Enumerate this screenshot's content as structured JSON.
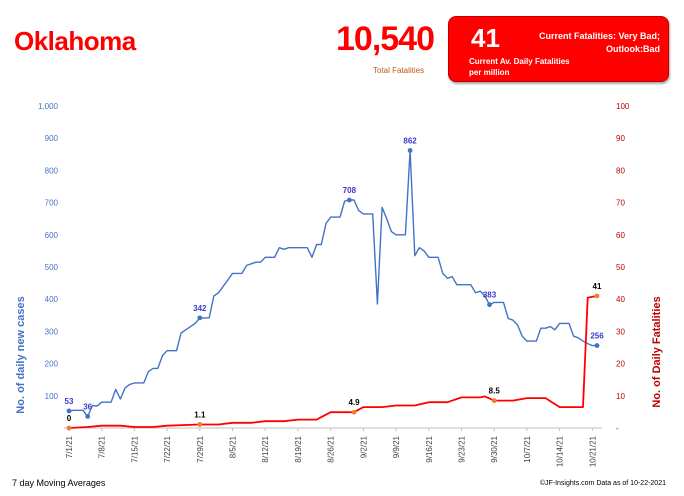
{
  "header": {
    "state": "Oklahoma",
    "total_fatalities": "10,540",
    "total_fatalities_label": "Total Fatalities",
    "current_rate": "41",
    "current_rate_label": "Current Av. Daily Fatalities per million",
    "status_text": "Current Fatalities: Very Bad; Outlook:Bad"
  },
  "footer": {
    "left": "7 day Moving Averages",
    "right": "©JF-Insights.com  Data as of 10-22-2021"
  },
  "colors": {
    "cases": "#4472c4",
    "fatalities": "#ff0000",
    "fatality_marker": "#ed7d31",
    "accent": "#ff0000",
    "left_axis_text": "#4472c4",
    "right_axis_text": "#c00000"
  },
  "chart_data": {
    "type": "line",
    "title": "",
    "xlabel": "",
    "ylabel_left": "No. of daily new  cases",
    "ylabel_right": "No. of Daily Fatalities",
    "ylim_left": [
      0,
      1000
    ],
    "ylim_right": [
      0,
      100
    ],
    "yticks_left": [
      "",
      "100",
      "200",
      "300",
      "400",
      "500",
      "600",
      "700",
      "800",
      "900",
      "1,000"
    ],
    "yticks_right": [
      "-",
      "10",
      "20",
      "30",
      "40",
      "50",
      "60",
      "70",
      "80",
      "90",
      "100"
    ],
    "x_start": "2021-07-01",
    "x_end": "2021-10-22",
    "x_tick_labels": [
      "7/1/21",
      "7/8/21",
      "7/15/21",
      "7/22/21",
      "7/29/21",
      "8/5/21",
      "8/12/21",
      "8/19/21",
      "8/26/21",
      "9/2/21",
      "9/9/21",
      "9/16/21",
      "9/23/21",
      "9/30/21",
      "10/7/21",
      "10/14/21",
      "10/21/21"
    ],
    "grid": false,
    "series": [
      {
        "name": "No. of daily new  cases",
        "axis": "left",
        "points": [
          [
            "2021-07-01",
            53
          ],
          [
            "2021-07-02",
            55
          ],
          [
            "2021-07-03",
            55
          ],
          [
            "2021-07-04",
            55
          ],
          [
            "2021-07-05",
            36
          ],
          [
            "2021-07-06",
            70
          ],
          [
            "2021-07-07",
            68
          ],
          [
            "2021-07-08",
            80
          ],
          [
            "2021-07-09",
            80
          ],
          [
            "2021-07-10",
            80
          ],
          [
            "2021-07-11",
            120
          ],
          [
            "2021-07-12",
            90
          ],
          [
            "2021-07-13",
            125
          ],
          [
            "2021-07-14",
            135
          ],
          [
            "2021-07-15",
            140
          ],
          [
            "2021-07-16",
            140
          ],
          [
            "2021-07-17",
            140
          ],
          [
            "2021-07-18",
            175
          ],
          [
            "2021-07-19",
            185
          ],
          [
            "2021-07-20",
            185
          ],
          [
            "2021-07-21",
            225
          ],
          [
            "2021-07-22",
            240
          ],
          [
            "2021-07-23",
            240
          ],
          [
            "2021-07-24",
            240
          ],
          [
            "2021-07-25",
            295
          ],
          [
            "2021-07-26",
            305
          ],
          [
            "2021-07-27",
            315
          ],
          [
            "2021-07-28",
            325
          ],
          [
            "2021-07-29",
            342
          ],
          [
            "2021-07-30",
            342
          ],
          [
            "2021-07-31",
            342
          ],
          [
            "2021-08-01",
            410
          ],
          [
            "2021-08-02",
            420
          ],
          [
            "2021-08-03",
            440
          ],
          [
            "2021-08-04",
            460
          ],
          [
            "2021-08-05",
            480
          ],
          [
            "2021-08-06",
            480
          ],
          [
            "2021-08-07",
            480
          ],
          [
            "2021-08-08",
            505
          ],
          [
            "2021-08-09",
            510
          ],
          [
            "2021-08-10",
            515
          ],
          [
            "2021-08-11",
            515
          ],
          [
            "2021-08-12",
            530
          ],
          [
            "2021-08-13",
            530
          ],
          [
            "2021-08-14",
            530
          ],
          [
            "2021-08-15",
            560
          ],
          [
            "2021-08-16",
            555
          ],
          [
            "2021-08-17",
            560
          ],
          [
            "2021-08-18",
            560
          ],
          [
            "2021-08-19",
            560
          ],
          [
            "2021-08-20",
            560
          ],
          [
            "2021-08-21",
            560
          ],
          [
            "2021-08-22",
            530
          ],
          [
            "2021-08-23",
            570
          ],
          [
            "2021-08-24",
            570
          ],
          [
            "2021-08-25",
            635
          ],
          [
            "2021-08-26",
            655
          ],
          [
            "2021-08-27",
            655
          ],
          [
            "2021-08-28",
            655
          ],
          [
            "2021-08-29",
            705
          ],
          [
            "2021-08-30",
            708
          ],
          [
            "2021-08-31",
            708
          ],
          [
            "2021-09-01",
            675
          ],
          [
            "2021-09-02",
            665
          ],
          [
            "2021-09-03",
            665
          ],
          [
            "2021-09-04",
            665
          ],
          [
            "2021-09-05",
            385
          ],
          [
            "2021-09-06",
            685
          ],
          [
            "2021-09-07",
            650
          ],
          [
            "2021-09-08",
            610
          ],
          [
            "2021-09-09",
            600
          ],
          [
            "2021-09-10",
            600
          ],
          [
            "2021-09-11",
            600
          ],
          [
            "2021-09-12",
            862
          ],
          [
            "2021-09-13",
            535
          ],
          [
            "2021-09-14",
            560
          ],
          [
            "2021-09-15",
            550
          ],
          [
            "2021-09-16",
            530
          ],
          [
            "2021-09-17",
            530
          ],
          [
            "2021-09-18",
            530
          ],
          [
            "2021-09-19",
            480
          ],
          [
            "2021-09-20",
            465
          ],
          [
            "2021-09-21",
            470
          ],
          [
            "2021-09-22",
            445
          ],
          [
            "2021-09-23",
            445
          ],
          [
            "2021-09-24",
            445
          ],
          [
            "2021-09-25",
            445
          ],
          [
            "2021-09-26",
            420
          ],
          [
            "2021-09-27",
            425
          ],
          [
            "2021-09-28",
            410
          ],
          [
            "2021-09-29",
            383
          ],
          [
            "2021-09-30",
            390
          ],
          [
            "2021-10-01",
            390
          ],
          [
            "2021-10-02",
            390
          ],
          [
            "2021-10-03",
            340
          ],
          [
            "2021-10-04",
            335
          ],
          [
            "2021-10-05",
            320
          ],
          [
            "2021-10-06",
            285
          ],
          [
            "2021-10-07",
            270
          ],
          [
            "2021-10-08",
            270
          ],
          [
            "2021-10-09",
            270
          ],
          [
            "2021-10-10",
            310
          ],
          [
            "2021-10-11",
            310
          ],
          [
            "2021-10-12",
            315
          ],
          [
            "2021-10-13",
            305
          ],
          [
            "2021-10-14",
            325
          ],
          [
            "2021-10-15",
            325
          ],
          [
            "2021-10-16",
            325
          ],
          [
            "2021-10-17",
            285
          ],
          [
            "2021-10-18",
            280
          ],
          [
            "2021-10-19",
            270
          ],
          [
            "2021-10-20",
            262
          ],
          [
            "2021-10-21",
            256
          ],
          [
            "2021-10-22",
            256
          ]
        ],
        "labels": [
          {
            "date": "2021-07-01",
            "value": 53,
            "text": "53"
          },
          {
            "date": "2021-07-05",
            "value": 36,
            "text": "36"
          },
          {
            "date": "2021-07-29",
            "value": 342,
            "text": "342"
          },
          {
            "date": "2021-08-30",
            "value": 708,
            "text": "708"
          },
          {
            "date": "2021-09-12",
            "value": 862,
            "text": "862"
          },
          {
            "date": "2021-09-29",
            "value": 383,
            "text": "383"
          },
          {
            "date": "2021-10-22",
            "value": 256,
            "text": "256"
          }
        ]
      },
      {
        "name": "No. of Daily Fatalities",
        "axis": "right",
        "points": [
          [
            "2021-07-01",
            0
          ],
          [
            "2021-07-05",
            0.3
          ],
          [
            "2021-07-08",
            0.7
          ],
          [
            "2021-07-12",
            0.7
          ],
          [
            "2021-07-15",
            0.3
          ],
          [
            "2021-07-19",
            0.3
          ],
          [
            "2021-07-22",
            0.7
          ],
          [
            "2021-07-29",
            1.1
          ],
          [
            "2021-08-02",
            1.1
          ],
          [
            "2021-08-05",
            1.6
          ],
          [
            "2021-08-09",
            1.6
          ],
          [
            "2021-08-12",
            2.1
          ],
          [
            "2021-08-16",
            2.1
          ],
          [
            "2021-08-19",
            2.6
          ],
          [
            "2021-08-23",
            2.6
          ],
          [
            "2021-08-26",
            4.9
          ],
          [
            "2021-08-30",
            4.9
          ],
          [
            "2021-08-31",
            4.9
          ],
          [
            "2021-09-02",
            6.5
          ],
          [
            "2021-09-06",
            6.5
          ],
          [
            "2021-09-09",
            7.0
          ],
          [
            "2021-09-13",
            7.0
          ],
          [
            "2021-09-16",
            8.0
          ],
          [
            "2021-09-20",
            8.0
          ],
          [
            "2021-09-23",
            9.5
          ],
          [
            "2021-09-27",
            9.5
          ],
          [
            "2021-09-28",
            9.8
          ],
          [
            "2021-09-30",
            8.5
          ],
          [
            "2021-10-04",
            8.5
          ],
          [
            "2021-10-07",
            9.3
          ],
          [
            "2021-10-11",
            9.3
          ],
          [
            "2021-10-14",
            6.5
          ],
          [
            "2021-10-18",
            6.5
          ],
          [
            "2021-10-19",
            6.5
          ],
          [
            "2021-10-20",
            40.5
          ],
          [
            "2021-10-22",
            41
          ]
        ],
        "labels": [
          {
            "date": "2021-07-01",
            "value": 0,
            "text": "0"
          },
          {
            "date": "2021-07-29",
            "value": 1.1,
            "text": "1.1"
          },
          {
            "date": "2021-08-31",
            "value": 4.9,
            "text": "4.9"
          },
          {
            "date": "2021-09-30",
            "value": 8.5,
            "text": "8.5"
          },
          {
            "date": "2021-10-22",
            "value": 41,
            "text": "41"
          }
        ]
      }
    ]
  }
}
